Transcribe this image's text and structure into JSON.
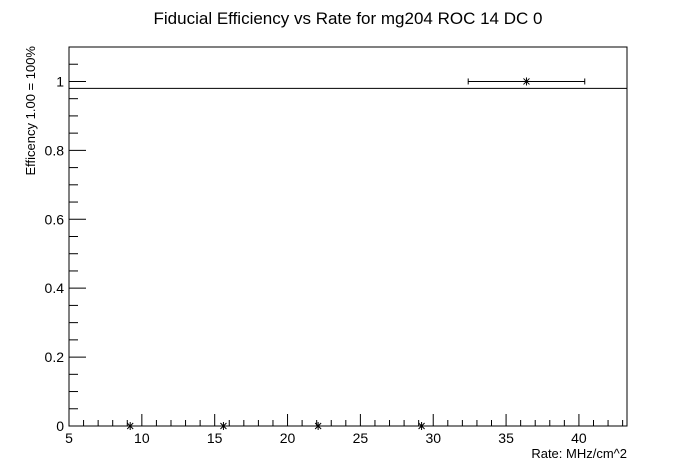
{
  "chart_data": {
    "type": "scatter",
    "title": "Fiducial Efficiency vs Rate for mg204 ROC 14 DC 0",
    "xlabel": "Rate: MHz/cm^2",
    "ylabel": "Efficency 1.00 = 100%",
    "xlim": [
      5,
      43.3
    ],
    "ylim": [
      0,
      1.1
    ],
    "x_major_ticks": [
      5,
      10,
      15,
      20,
      25,
      30,
      35,
      40
    ],
    "x_tick_labels": [
      "5",
      "10",
      "15",
      "20",
      "25",
      "30",
      "35",
      "40"
    ],
    "x_minor_step": 1,
    "y_major_ticks": [
      0,
      0.2,
      0.4,
      0.6,
      0.8,
      1
    ],
    "y_tick_labels": [
      "0",
      "0.2",
      "0.4",
      "0.6",
      "0.8",
      "1"
    ],
    "y_minor_step": 0.05,
    "grid": false,
    "reference_line": {
      "y": 0.98
    },
    "series": [
      {
        "marker": "asterisk",
        "color": "#000000",
        "points": [
          {
            "x": 9.2,
            "y": 0
          },
          {
            "x": 15.6,
            "y": 0
          },
          {
            "x": 22.1,
            "y": 0
          },
          {
            "x": 29.2,
            "y": 0
          },
          {
            "x": 36.4,
            "y": 1.0,
            "xerr_low": 32.4,
            "xerr_high": 40.4
          }
        ]
      }
    ]
  }
}
